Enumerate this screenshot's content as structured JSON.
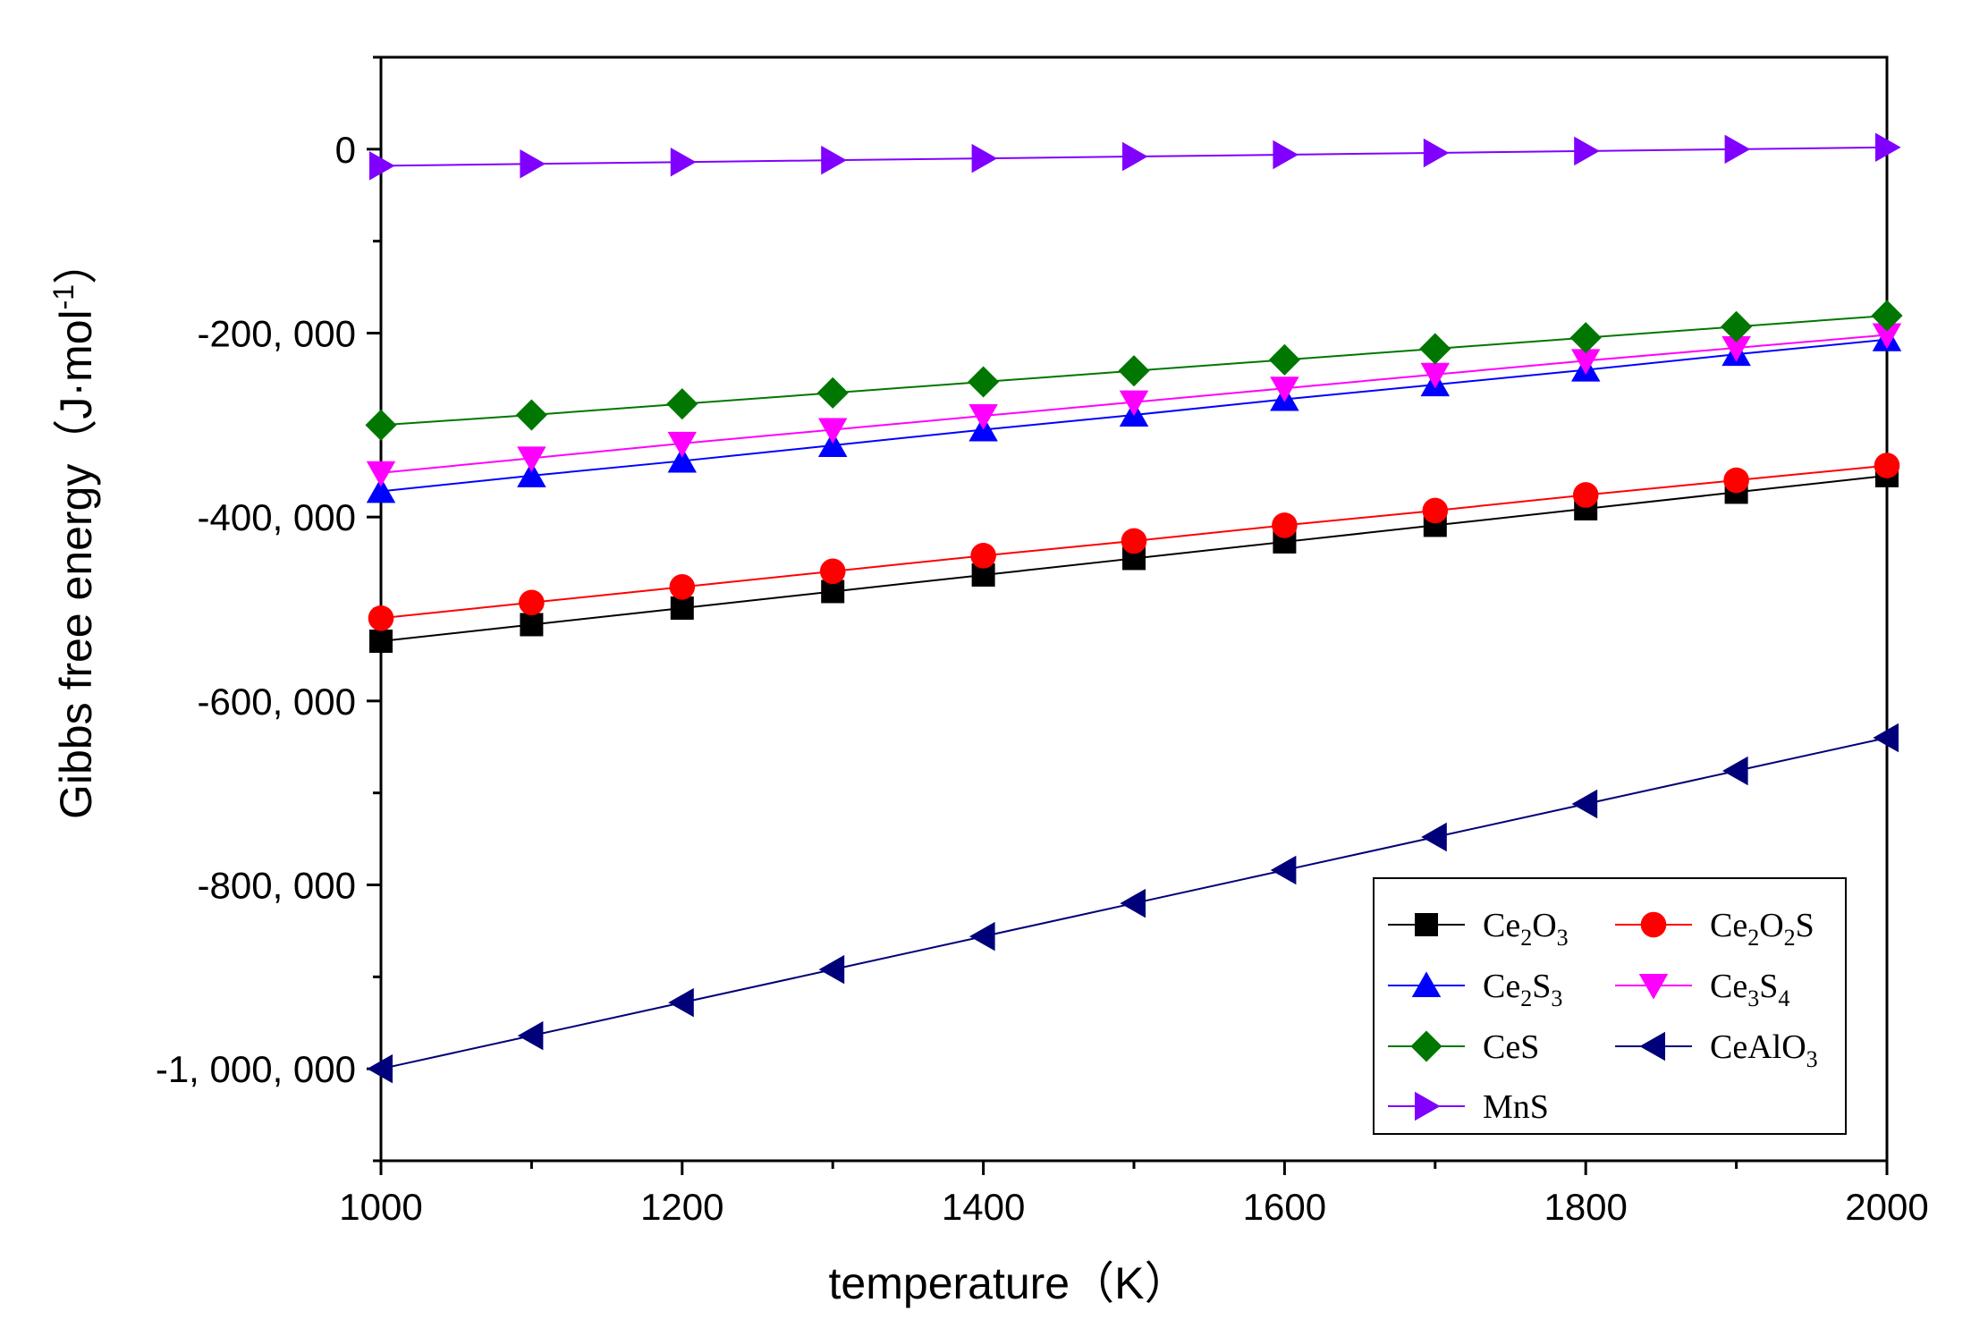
{
  "chart_data": {
    "type": "line",
    "title": "",
    "xlabel": "temperature（K）",
    "ylabel_main": "Gibbs free energy（J·mol",
    "ylabel_sup": "-1",
    "ylabel_end": "）",
    "xlim": [
      1000,
      2000
    ],
    "ylim": [
      -1100000,
      100000
    ],
    "x": [
      1000,
      1100,
      1200,
      1300,
      1400,
      1500,
      1600,
      1700,
      1800,
      1900,
      2000
    ],
    "x_ticks": [
      1000,
      1200,
      1400,
      1600,
      1800,
      2000
    ],
    "x_tick_labels": [
      "1000",
      "1200",
      "1400",
      "1600",
      "1800",
      "2000"
    ],
    "y_ticks": [
      0,
      -200000,
      -400000,
      -600000,
      -800000,
      -1000000
    ],
    "y_tick_labels": [
      "0",
      "-200, 000",
      "-400, 000",
      "-600, 000",
      "-800, 000",
      "-1, 000, 000"
    ],
    "legend_position": "bottom-right",
    "series": [
      {
        "name": "Ce2O3",
        "label": [
          {
            "t": "Ce"
          },
          {
            "t": "2",
            "sub": true
          },
          {
            "t": "O"
          },
          {
            "t": "3",
            "sub": true
          }
        ],
        "marker": "square",
        "color": "#000000",
        "values": [
          -535000,
          -517000,
          -499000,
          -481000,
          -463000,
          -445000,
          -427000,
          -409000,
          -391000,
          -373000,
          -355000
        ]
      },
      {
        "name": "Ce2O2S",
        "label": [
          {
            "t": "Ce"
          },
          {
            "t": "2",
            "sub": true
          },
          {
            "t": "O"
          },
          {
            "t": "2",
            "sub": true
          },
          {
            "t": "S"
          }
        ],
        "marker": "circle",
        "color": "#ff0000",
        "values": [
          -510000,
          -493000,
          -476000,
          -459000,
          -442000,
          -426000,
          -409000,
          -393000,
          -376000,
          -360000,
          -344000
        ]
      },
      {
        "name": "Ce2S3",
        "label": [
          {
            "t": "Ce"
          },
          {
            "t": "2",
            "sub": true
          },
          {
            "t": "S"
          },
          {
            "t": "3",
            "sub": true
          }
        ],
        "marker": "triangle-up",
        "color": "#0000ff",
        "values": [
          -372000,
          -355000,
          -339000,
          -322000,
          -305000,
          -289000,
          -272000,
          -256000,
          -240000,
          -223000,
          -207000
        ]
      },
      {
        "name": "Ce3S4",
        "label": [
          {
            "t": "Ce"
          },
          {
            "t": "3",
            "sub": true
          },
          {
            "t": "S"
          },
          {
            "t": "4",
            "sub": true
          }
        ],
        "marker": "triangle-down",
        "color": "#ff00ff",
        "values": [
          -352000,
          -336000,
          -320000,
          -305000,
          -290000,
          -275000,
          -260000,
          -245000,
          -230000,
          -216000,
          -202000
        ]
      },
      {
        "name": "CeS",
        "label": [
          {
            "t": "CeS"
          }
        ],
        "marker": "diamond",
        "color": "#007700",
        "values": [
          -300000,
          -289000,
          -277000,
          -265000,
          -253000,
          -241000,
          -229000,
          -217000,
          -205000,
          -193000,
          -181000
        ]
      },
      {
        "name": "CeAlO3",
        "label": [
          {
            "t": "CeAlO"
          },
          {
            "t": "3",
            "sub": true
          }
        ],
        "marker": "triangle-left",
        "color": "#00007a",
        "values": [
          -1000000,
          -964000,
          -928000,
          -892000,
          -856000,
          -820000,
          -784000,
          -748000,
          -712000,
          -676000,
          -640000
        ]
      },
      {
        "name": "MnS",
        "label": [
          {
            "t": "MnS"
          }
        ],
        "marker": "triangle-right",
        "color": "#8000ff",
        "values": [
          -18000,
          -16000,
          -14000,
          -12000,
          -10000,
          -8000,
          -6000,
          -4000,
          -2000,
          0,
          2000
        ]
      }
    ]
  }
}
